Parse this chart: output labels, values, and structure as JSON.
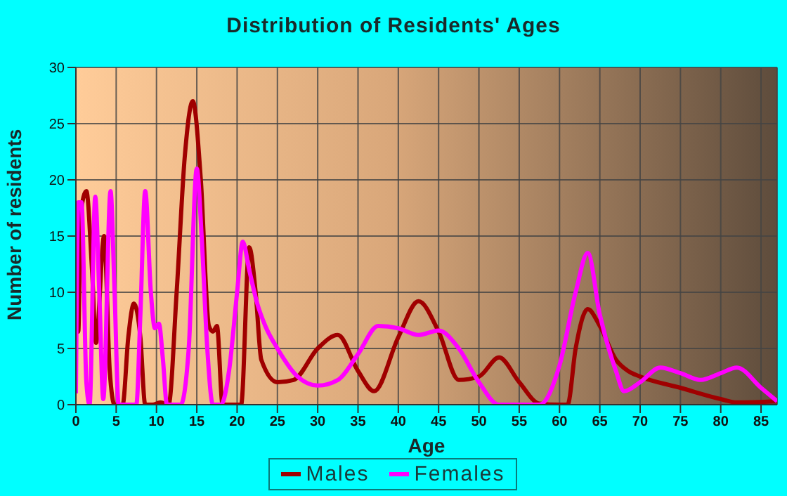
{
  "chart_data": {
    "type": "line",
    "title": "Distribution of Residents' Ages",
    "xlabel": "Age",
    "ylabel": "Number of residents",
    "xlim": [
      0,
      87
    ],
    "xticks": [
      0,
      5,
      10,
      15,
      20,
      25,
      30,
      35,
      40,
      45,
      50,
      55,
      60,
      65,
      70,
      75,
      80,
      85
    ],
    "ylim": [
      0,
      30
    ],
    "yticks": [
      0,
      5,
      10,
      15,
      20,
      25,
      30
    ],
    "grid": true,
    "legend": "bottom",
    "marker": "none",
    "line_style": "solid",
    "series": [
      {
        "name": "Males",
        "color": "#a00000",
        "x": [
          0,
          0.3,
          0.6,
          1.3,
          2,
          2.5,
          3.5,
          4.2,
          4.8,
          5.8,
          6.5,
          7.2,
          8,
          8.6,
          9.5,
          10.5,
          11.5,
          12.5,
          13.5,
          14.5,
          15.5,
          16.5,
          17,
          17.5,
          18.2,
          20,
          20.5,
          21.5,
          22.3,
          23,
          25,
          27,
          30,
          32.5,
          35,
          37,
          40,
          42.5,
          45,
          47.5,
          50,
          52.5,
          55,
          57.5,
          60,
          61,
          62,
          63.5,
          65,
          67,
          68.5,
          70,
          75,
          80,
          82,
          87
        ],
        "values": [
          18,
          6.5,
          17,
          19,
          12,
          5.5,
          15,
          3,
          0,
          0,
          6,
          9,
          6,
          0,
          0,
          0.2,
          0,
          10,
          22,
          27,
          20,
          7,
          6.5,
          7,
          0,
          0,
          0,
          14,
          10,
          4,
          2,
          2.2,
          5,
          6.2,
          3,
          1.2,
          6,
          9.2,
          6.5,
          2.2,
          2.5,
          4.2,
          2,
          0.1,
          0,
          0,
          5,
          8.5,
          7,
          4,
          3,
          2.5,
          1.5,
          0.5,
          0.2,
          0.3
        ]
      },
      {
        "name": "Females",
        "color": "#ff00ff",
        "x": [
          0,
          0.3,
          0.7,
          1.3,
          1.7,
          2.4,
          2.9,
          3.4,
          4.3,
          4.8,
          5.3,
          7.5,
          8,
          8.6,
          9.3,
          9.8,
          10.3,
          10.8,
          11.3,
          13,
          14,
          15,
          15.6,
          16.3,
          17,
          18,
          19,
          20,
          20.7,
          21.5,
          22.5,
          23.5,
          25,
          27.5,
          30,
          32.5,
          35,
          37.5,
          40,
          42.5,
          45,
          47.5,
          50,
          52.5,
          55,
          57.5,
          60,
          62,
          63.5,
          65,
          67,
          68,
          70,
          72.5,
          75,
          77.5,
          80,
          82,
          85,
          87
        ],
        "values": [
          1,
          18,
          18,
          2,
          0,
          18.5,
          10,
          0.5,
          19,
          10,
          0,
          0,
          8,
          19,
          10,
          6.8,
          7.2,
          4,
          0,
          0,
          5,
          21,
          15,
          5,
          0,
          0,
          3,
          10,
          14.5,
          12,
          9,
          7,
          5,
          2.5,
          1.7,
          2.2,
          4.5,
          7,
          6.8,
          6.2,
          6.6,
          5,
          2,
          0,
          0,
          0,
          3.5,
          10,
          13.5,
          8,
          3,
          1.2,
          2,
          3.3,
          2.8,
          2.2,
          2.8,
          3.3,
          1.5,
          0.3
        ]
      }
    ]
  }
}
